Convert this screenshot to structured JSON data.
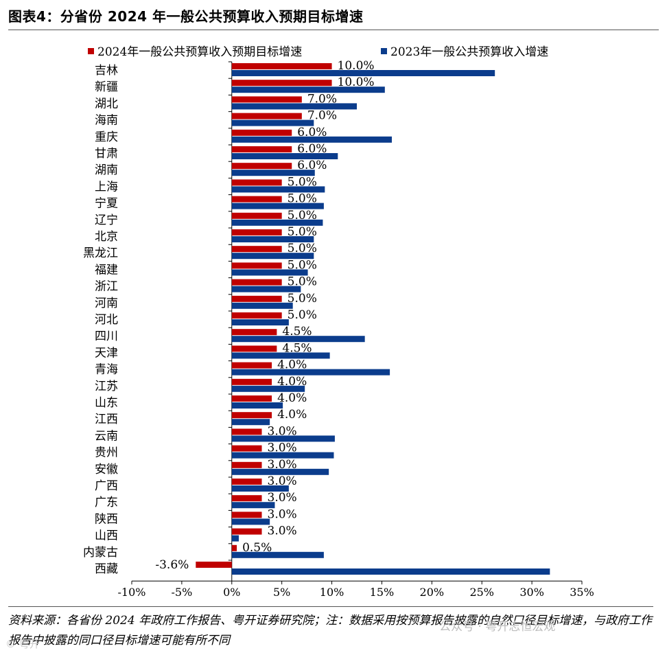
{
  "title": "图表4：分省份 2024 年一般公共预算收入预期目标增速",
  "note": "资料来源：各省份 2024 年政府工作报告、粤开证券研究院；注：数据采用按预算报告披露的自然口径目标增速，与政府工作报告中披露的同口径目标增速可能有所不同",
  "watermark": "公众号 · 粤开志恒宏观",
  "watermark2": "© 粤开",
  "colors": {
    "series_2024": "#c00000",
    "series_2023": "#0b3c8c"
  },
  "chart_data": {
    "type": "bar",
    "orientation": "horizontal",
    "categories": [
      "吉林",
      "新疆",
      "湖北",
      "海南",
      "重庆",
      "甘肃",
      "湖南",
      "上海",
      "宁夏",
      "辽宁",
      "北京",
      "黑龙江",
      "福建",
      "浙江",
      "河南",
      "河北",
      "四川",
      "天津",
      "青海",
      "江苏",
      "山东",
      "江西",
      "云南",
      "贵州",
      "安徽",
      "广西",
      "广东",
      "陕西",
      "山西",
      "内蒙古",
      "西藏"
    ],
    "series": [
      {
        "name": "2024年一般公共预算收入预期目标增速",
        "values": [
          10.0,
          10.0,
          7.0,
          7.0,
          6.0,
          6.0,
          6.0,
          5.0,
          5.0,
          5.0,
          5.0,
          5.0,
          5.0,
          5.0,
          5.0,
          5.0,
          4.5,
          4.5,
          4.0,
          4.0,
          4.0,
          4.0,
          3.0,
          3.0,
          3.0,
          3.0,
          3.0,
          3.0,
          3.0,
          0.5,
          -3.6
        ],
        "labels": [
          "10.0%",
          "10.0%",
          "7.0%",
          "7.0%",
          "6.0%",
          "6.0%",
          "6.0%",
          "5.0%",
          "5.0%",
          "5.0%",
          "5.0%",
          "5.0%",
          "5.0%",
          "5.0%",
          "5.0%",
          "5.0%",
          "4.5%",
          "4.5%",
          "4.0%",
          "4.0%",
          "4.0%",
          "4.0%",
          "3.0%",
          "3.0%",
          "3.0%",
          "3.0%",
          "3.0%",
          "3.0%",
          "3.0%",
          "0.5%",
          "-3.6%"
        ]
      },
      {
        "name": "2023年一般公共预算收入增速",
        "values": [
          26.3,
          15.3,
          12.5,
          8.2,
          16.0,
          10.6,
          8.3,
          9.3,
          9.2,
          9.1,
          8.2,
          8.2,
          7.6,
          6.9,
          6.1,
          5.7,
          13.3,
          9.8,
          15.8,
          7.3,
          5.1,
          3.8,
          10.3,
          10.2,
          9.7,
          5.7,
          4.3,
          3.8,
          0.7,
          9.2,
          31.8
        ]
      }
    ],
    "xticks": [
      "-10%",
      "-5%",
      "0%",
      "5%",
      "10%",
      "15%",
      "20%",
      "25%",
      "30%",
      "35%"
    ],
    "xlim": [
      -10,
      35
    ],
    "legend": "top"
  }
}
